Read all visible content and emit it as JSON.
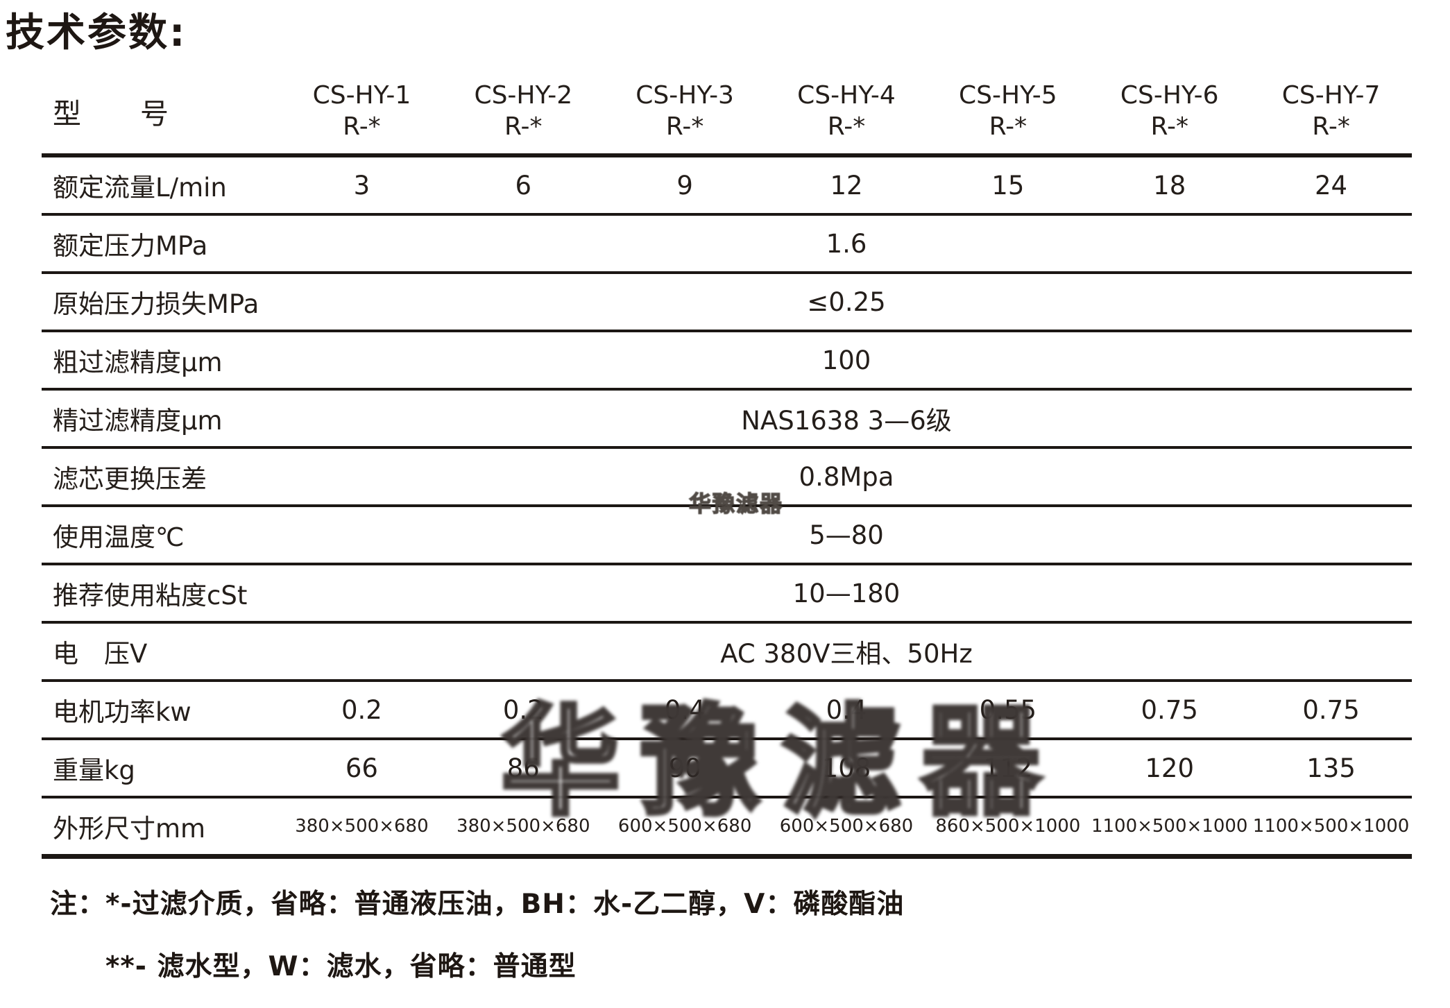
{
  "page": {
    "title": "技术参数:"
  },
  "table": {
    "header": {
      "label": "型　　号",
      "models": [
        {
          "line1": "CS-HY-1",
          "line2": "R-*"
        },
        {
          "line1": "CS-HY-2",
          "line2": "R-*"
        },
        {
          "line1": "CS-HY-3",
          "line2": "R-*"
        },
        {
          "line1": "CS-HY-4",
          "line2": "R-*"
        },
        {
          "line1": "CS-HY-5",
          "line2": "R-*"
        },
        {
          "line1": "CS-HY-6",
          "line2": "R-*"
        },
        {
          "line1": "CS-HY-7",
          "line2": "R-*"
        }
      ]
    },
    "rows": [
      {
        "label": "额定流量L/min",
        "values": [
          "3",
          "6",
          "9",
          "12",
          "15",
          "18",
          "24"
        ]
      },
      {
        "label": "额定压力MPa",
        "value": "1.6"
      },
      {
        "label": "原始压力损失MPa",
        "value": "≤0.25"
      },
      {
        "label": "粗过滤精度μm",
        "value": "100"
      },
      {
        "label": "精过滤精度μm",
        "value": "NAS1638 3—6级"
      },
      {
        "label": "滤芯更换压差",
        "value": "0.8Mpa"
      },
      {
        "label": "使用温度℃",
        "value": "5—80"
      },
      {
        "label": "推荐使用粘度cSt",
        "value": "10—180"
      },
      {
        "label": "电　压V",
        "value": "AC 380V三相、50Hz"
      },
      {
        "label": "电机功率kw",
        "values": [
          "0.2",
          "0.2",
          "0.4",
          "0.4",
          "0.55",
          "0.75",
          "0.75"
        ]
      },
      {
        "label": "重量kg",
        "values": [
          "66",
          "86",
          "90",
          "108",
          "112",
          "120",
          "135"
        ]
      },
      {
        "label": "外形尺寸mm",
        "small": true,
        "values": [
          "380×500×680",
          "380×500×680",
          "600×500×680",
          "600×500×680",
          "860×500×1000",
          "1100×500×1000",
          "1100×500×1000"
        ]
      }
    ]
  },
  "notes": {
    "line1": "注：*-过滤介质，省略：普通液压油，BH：水-乙二醇，V：磷酸酯油",
    "line2": "**- 滤水型，W：滤水，省略：普通型"
  },
  "watermark": {
    "text": "华豫滤器"
  },
  "colors": {
    "text": "#241e1a",
    "line": "#1c1714",
    "background": "#ffffff"
  }
}
